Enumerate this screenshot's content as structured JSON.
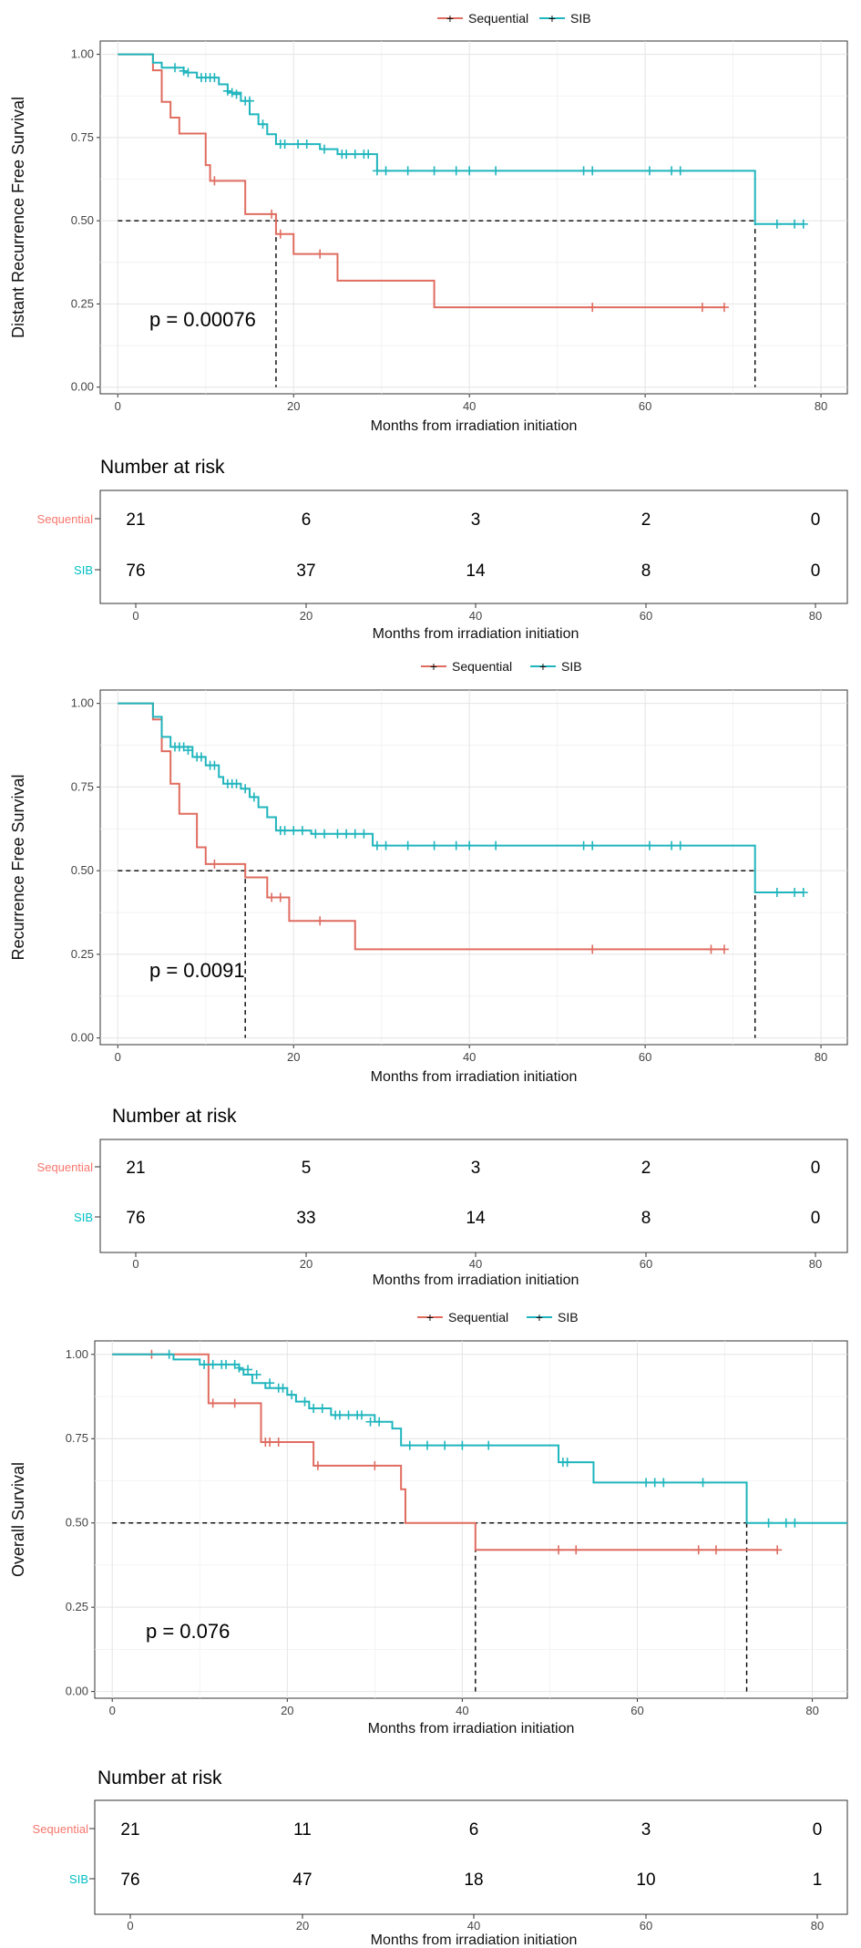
{
  "colors": {
    "sequential": "#E06C60",
    "sib": "#1FB5BD",
    "sequential_label": "#F8766D",
    "sib_label": "#00BFC4"
  },
  "panels": [
    {
      "legend": {
        "seq": "Sequential",
        "sib": "SIB"
      },
      "pvalue": "p = 0.00076",
      "nar_title": "Number at risk",
      "nar_group_labels": {
        "seq": "Sequential",
        "sib": "SIB"
      },
      "nar_xlabel": "Months from irradiation initiation",
      "nar_ticks": [
        "0",
        "20",
        "40",
        "60",
        "80"
      ],
      "nar_seq": [
        "21",
        "6",
        "3",
        "2",
        "0"
      ],
      "nar_sib": [
        "76",
        "37",
        "14",
        "8",
        "0"
      ]
    },
    {
      "legend": {
        "seq": "Sequential",
        "sib": "SIB"
      },
      "pvalue": "p = 0.0091",
      "nar_title": "Number at risk",
      "nar_group_labels": {
        "seq": "Sequential",
        "sib": "SIB"
      },
      "nar_xlabel": "Months from irradiation initiation",
      "nar_ticks": [
        "0",
        "20",
        "40",
        "60",
        "80"
      ],
      "nar_seq": [
        "21",
        "5",
        "3",
        "2",
        "0"
      ],
      "nar_sib": [
        "76",
        "33",
        "14",
        "8",
        "0"
      ]
    },
    {
      "legend": {
        "seq": "Sequential",
        "sib": "SIB"
      },
      "pvalue": "p = 0.076",
      "nar_title": "Number at risk",
      "nar_group_labels": {
        "seq": "Sequential",
        "sib": "SIB"
      },
      "nar_xlabel": "Months from irradiation initiation",
      "nar_ticks": [
        "0",
        "20",
        "40",
        "60",
        "80"
      ],
      "nar_seq": [
        "21",
        "11",
        "6",
        "3",
        "0"
      ],
      "nar_sib": [
        "76",
        "47",
        "18",
        "10",
        "1"
      ]
    }
  ],
  "chart_data": [
    {
      "type": "line",
      "title": "",
      "xlabel": "Months from irradiation initiation",
      "ylabel": "Distant Recurrence Free Survival",
      "xlim": [
        -2,
        83
      ],
      "ylim": [
        -0.02,
        1.04
      ],
      "xticks": [
        "0",
        "20",
        "40",
        "60",
        "80"
      ],
      "yticks": [
        "0.00",
        "0.25",
        "0.50",
        "0.75",
        "1.00"
      ],
      "series": [
        {
          "name": "Sequential",
          "steps": [
            [
              0,
              1
            ],
            [
              4,
              0.952
            ],
            [
              5,
              0.857
            ],
            [
              6,
              0.81
            ],
            [
              7,
              0.762
            ],
            [
              10,
              0.667
            ],
            [
              10.5,
              0.62
            ],
            [
              14.5,
              0.52
            ],
            [
              18,
              0.46
            ],
            [
              20,
              0.4
            ],
            [
              25,
              0.32
            ],
            [
              36,
              0.24
            ],
            [
              69,
              0.24
            ]
          ],
          "censor": [
            [
              11,
              0.62
            ],
            [
              17.5,
              0.52
            ],
            [
              18.5,
              0.46
            ],
            [
              23,
              0.4
            ],
            [
              54,
              0.24
            ],
            [
              66.5,
              0.24
            ],
            [
              69,
              0.24
            ]
          ]
        },
        {
          "name": "SIB",
          "steps": [
            [
              0,
              1
            ],
            [
              4,
              0.975
            ],
            [
              5,
              0.96
            ],
            [
              7.5,
              0.945
            ],
            [
              9,
              0.93
            ],
            [
              11.5,
              0.91
            ],
            [
              12.5,
              0.885
            ],
            [
              14,
              0.86
            ],
            [
              15,
              0.82
            ],
            [
              16,
              0.79
            ],
            [
              17,
              0.76
            ],
            [
              18,
              0.73
            ],
            [
              23,
              0.715
            ],
            [
              25,
              0.7
            ],
            [
              29.5,
              0.65
            ],
            [
              72.5,
              0.49
            ],
            [
              78,
              0.49
            ]
          ],
          "censor": [
            [
              6.5,
              0.96
            ],
            [
              7.5,
              0.95
            ],
            [
              8,
              0.945
            ],
            [
              9.5,
              0.93
            ],
            [
              10,
              0.93
            ],
            [
              10.5,
              0.93
            ],
            [
              11,
              0.93
            ],
            [
              12.5,
              0.89
            ],
            [
              13,
              0.885
            ],
            [
              13.5,
              0.88
            ],
            [
              14.5,
              0.86
            ],
            [
              15,
              0.86
            ],
            [
              16.5,
              0.79
            ],
            [
              18.5,
              0.73
            ],
            [
              19,
              0.73
            ],
            [
              20.5,
              0.73
            ],
            [
              21.5,
              0.73
            ],
            [
              23.5,
              0.715
            ],
            [
              25.5,
              0.7
            ],
            [
              26,
              0.7
            ],
            [
              27,
              0.7
            ],
            [
              28,
              0.7
            ],
            [
              28.5,
              0.7
            ],
            [
              29.5,
              0.65
            ],
            [
              30.5,
              0.65
            ],
            [
              33,
              0.65
            ],
            [
              36,
              0.65
            ],
            [
              38.5,
              0.65
            ],
            [
              40,
              0.65
            ],
            [
              43,
              0.65
            ],
            [
              53,
              0.65
            ],
            [
              54,
              0.65
            ],
            [
              60.5,
              0.65
            ],
            [
              63,
              0.65
            ],
            [
              64,
              0.65
            ],
            [
              75,
              0.49
            ],
            [
              77,
              0.49
            ],
            [
              78,
              0.49
            ]
          ]
        }
      ],
      "median_lines": {
        "y": 0.5,
        "x": [
          18,
          72.5
        ]
      },
      "pvalue": "p = 0.00076"
    },
    {
      "type": "line",
      "title": "",
      "xlabel": "Months from irradiation initiation",
      "ylabel": "Recurrence Free Survival",
      "xlim": [
        -2,
        83
      ],
      "ylim": [
        -0.02,
        1.04
      ],
      "xticks": [
        "0",
        "20",
        "40",
        "60",
        "80"
      ],
      "yticks": [
        "0.00",
        "0.25",
        "0.50",
        "0.75",
        "1.00"
      ],
      "series": [
        {
          "name": "Sequential",
          "steps": [
            [
              0,
              1
            ],
            [
              4,
              0.952
            ],
            [
              5,
              0.857
            ],
            [
              6,
              0.76
            ],
            [
              7,
              0.67
            ],
            [
              9,
              0.57
            ],
            [
              10,
              0.52
            ],
            [
              14.5,
              0.48
            ],
            [
              17,
              0.42
            ],
            [
              19.5,
              0.35
            ],
            [
              27,
              0.265
            ],
            [
              69,
              0.265
            ]
          ],
          "censor": [
            [
              11,
              0.52
            ],
            [
              17.5,
              0.42
            ],
            [
              18.5,
              0.42
            ],
            [
              23,
              0.35
            ],
            [
              54,
              0.265
            ],
            [
              67.5,
              0.265
            ],
            [
              69,
              0.265
            ]
          ]
        },
        {
          "name": "SIB",
          "steps": [
            [
              0,
              1
            ],
            [
              4,
              0.96
            ],
            [
              5,
              0.9
            ],
            [
              6,
              0.87
            ],
            [
              8.5,
              0.84
            ],
            [
              10,
              0.815
            ],
            [
              11.5,
              0.78
            ],
            [
              12,
              0.76
            ],
            [
              14,
              0.745
            ],
            [
              15,
              0.72
            ],
            [
              16,
              0.69
            ],
            [
              17,
              0.66
            ],
            [
              18,
              0.62
            ],
            [
              22,
              0.61
            ],
            [
              29,
              0.575
            ],
            [
              72.5,
              0.435
            ],
            [
              78,
              0.435
            ]
          ],
          "censor": [
            [
              6.5,
              0.87
            ],
            [
              7,
              0.87
            ],
            [
              7.5,
              0.87
            ],
            [
              8,
              0.86
            ],
            [
              9,
              0.84
            ],
            [
              9.5,
              0.84
            ],
            [
              10.5,
              0.815
            ],
            [
              11,
              0.815
            ],
            [
              12.5,
              0.76
            ],
            [
              13,
              0.76
            ],
            [
              13.5,
              0.76
            ],
            [
              14.5,
              0.745
            ],
            [
              15.5,
              0.72
            ],
            [
              18.5,
              0.62
            ],
            [
              19,
              0.62
            ],
            [
              20,
              0.62
            ],
            [
              21,
              0.62
            ],
            [
              22.5,
              0.61
            ],
            [
              23.5,
              0.61
            ],
            [
              25,
              0.61
            ],
            [
              26,
              0.61
            ],
            [
              27,
              0.61
            ],
            [
              28,
              0.61
            ],
            [
              29.5,
              0.575
            ],
            [
              30.5,
              0.575
            ],
            [
              33,
              0.575
            ],
            [
              36,
              0.575
            ],
            [
              38.5,
              0.575
            ],
            [
              40,
              0.575
            ],
            [
              43,
              0.575
            ],
            [
              53,
              0.575
            ],
            [
              54,
              0.575
            ],
            [
              60.5,
              0.575
            ],
            [
              63,
              0.575
            ],
            [
              64,
              0.575
            ],
            [
              75,
              0.435
            ],
            [
              77,
              0.435
            ],
            [
              78,
              0.435
            ]
          ]
        }
      ],
      "median_lines": {
        "y": 0.5,
        "x": [
          14.5,
          72.5
        ]
      },
      "pvalue": "p = 0.0091"
    },
    {
      "type": "line",
      "title": "",
      "xlabel": "Months from irradiation initiation",
      "ylabel": "Overall Survival",
      "xlim": [
        -2,
        84
      ],
      "ylim": [
        -0.02,
        1.04
      ],
      "xticks": [
        "0",
        "20",
        "40",
        "60",
        "80"
      ],
      "yticks": [
        "0.00",
        "0.25",
        "0.50",
        "0.75",
        "1.00"
      ],
      "series": [
        {
          "name": "Sequential",
          "steps": [
            [
              0,
              1
            ],
            [
              11,
              0.855
            ],
            [
              17,
              0.74
            ],
            [
              23,
              0.67
            ],
            [
              33,
              0.6
            ],
            [
              33.5,
              0.5
            ],
            [
              41.5,
              0.42
            ],
            [
              76,
              0.42
            ]
          ],
          "censor": [
            [
              4.5,
              1
            ],
            [
              11.5,
              0.855
            ],
            [
              14,
              0.855
            ],
            [
              17.5,
              0.74
            ],
            [
              18,
              0.74
            ],
            [
              19,
              0.74
            ],
            [
              23.5,
              0.67
            ],
            [
              30,
              0.67
            ],
            [
              51,
              0.42
            ],
            [
              53,
              0.42
            ],
            [
              67,
              0.42
            ],
            [
              69,
              0.42
            ],
            [
              76,
              0.42
            ]
          ]
        },
        {
          "name": "SIB",
          "steps": [
            [
              0,
              1
            ],
            [
              7,
              0.985
            ],
            [
              10,
              0.97
            ],
            [
              14.5,
              0.955
            ],
            [
              15,
              0.94
            ],
            [
              16,
              0.915
            ],
            [
              17.5,
              0.9
            ],
            [
              20,
              0.88
            ],
            [
              21,
              0.86
            ],
            [
              22.5,
              0.84
            ],
            [
              25,
              0.82
            ],
            [
              30,
              0.8
            ],
            [
              32,
              0.78
            ],
            [
              33,
              0.73
            ],
            [
              51,
              0.68
            ],
            [
              55,
              0.62
            ],
            [
              72.5,
              0.5
            ],
            [
              84,
              0.5
            ]
          ],
          "censor": [
            [
              6.5,
              1
            ],
            [
              10.5,
              0.97
            ],
            [
              11.5,
              0.97
            ],
            [
              12.5,
              0.97
            ],
            [
              13,
              0.97
            ],
            [
              14,
              0.97
            ],
            [
              14.5,
              0.96
            ],
            [
              15.5,
              0.955
            ],
            [
              16.5,
              0.94
            ],
            [
              18,
              0.915
            ],
            [
              19,
              0.9
            ],
            [
              19.5,
              0.9
            ],
            [
              20.5,
              0.88
            ],
            [
              22,
              0.86
            ],
            [
              23,
              0.84
            ],
            [
              24,
              0.84
            ],
            [
              25.5,
              0.82
            ],
            [
              26,
              0.82
            ],
            [
              27,
              0.82
            ],
            [
              28,
              0.82
            ],
            [
              28.5,
              0.82
            ],
            [
              29.5,
              0.8
            ],
            [
              30.5,
              0.8
            ],
            [
              34,
              0.73
            ],
            [
              36,
              0.73
            ],
            [
              38,
              0.73
            ],
            [
              40,
              0.73
            ],
            [
              43,
              0.73
            ],
            [
              51.5,
              0.68
            ],
            [
              52,
              0.68
            ],
            [
              61,
              0.62
            ],
            [
              62,
              0.62
            ],
            [
              63,
              0.62
            ],
            [
              67.5,
              0.62
            ],
            [
              75,
              0.5
            ],
            [
              77,
              0.5
            ],
            [
              78,
              0.5
            ]
          ]
        }
      ],
      "median_lines": {
        "y": 0.5,
        "x": [
          41.5,
          72.5
        ]
      },
      "pvalue": "p = 0.076"
    }
  ]
}
